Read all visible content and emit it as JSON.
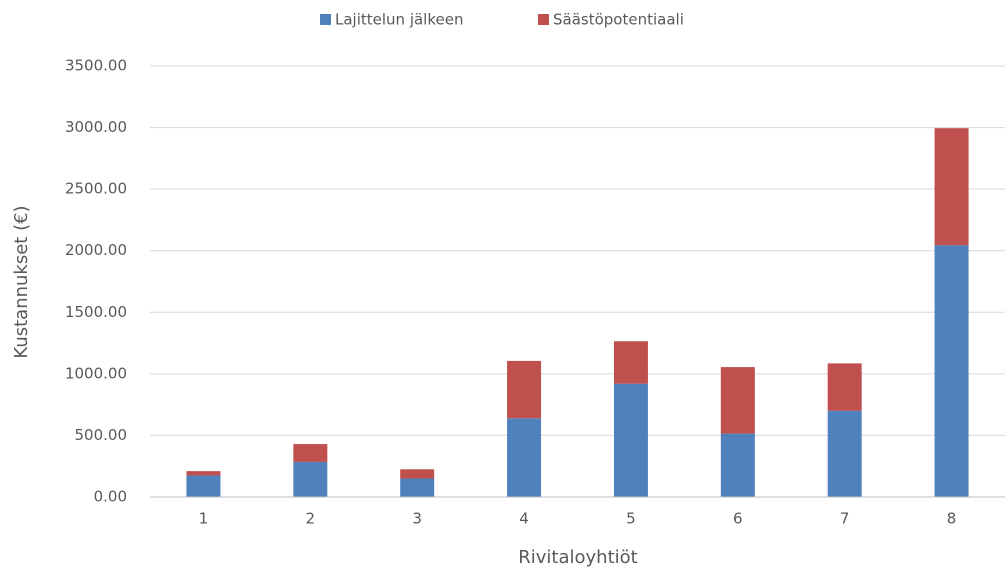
{
  "chart_data": {
    "type": "stacked_bar",
    "x_label": "Rivitaloyhtiöt",
    "y_label": "Kustannukset (€)",
    "categories": [
      "1",
      "2",
      "3",
      "4",
      "5",
      "6",
      "7",
      "8"
    ],
    "series": [
      {
        "name": "Lajittelun jälkeen",
        "color": "#4f81bd",
        "values": [
          175,
          285,
          150,
          640,
          920,
          515,
          700,
          2045
        ]
      },
      {
        "name": "Säästöpotentiaali",
        "color": "#c0504d",
        "values": [
          35,
          145,
          75,
          465,
          345,
          540,
          385,
          950
        ]
      }
    ],
    "ylim": [
      0,
      3500
    ],
    "yticks": [
      {
        "value": 0,
        "label": "0.00"
      },
      {
        "value": 500,
        "label": "500.00"
      },
      {
        "value": 1000,
        "label": "1000.00"
      },
      {
        "value": 1500,
        "label": "1500.00"
      },
      {
        "value": 2000,
        "label": "2000.00"
      },
      {
        "value": 2500,
        "label": "2500.00"
      },
      {
        "value": 3000,
        "label": "3000.00"
      },
      {
        "value": 3500,
        "label": "3500.00"
      }
    ],
    "grid": true,
    "legend": "top"
  }
}
